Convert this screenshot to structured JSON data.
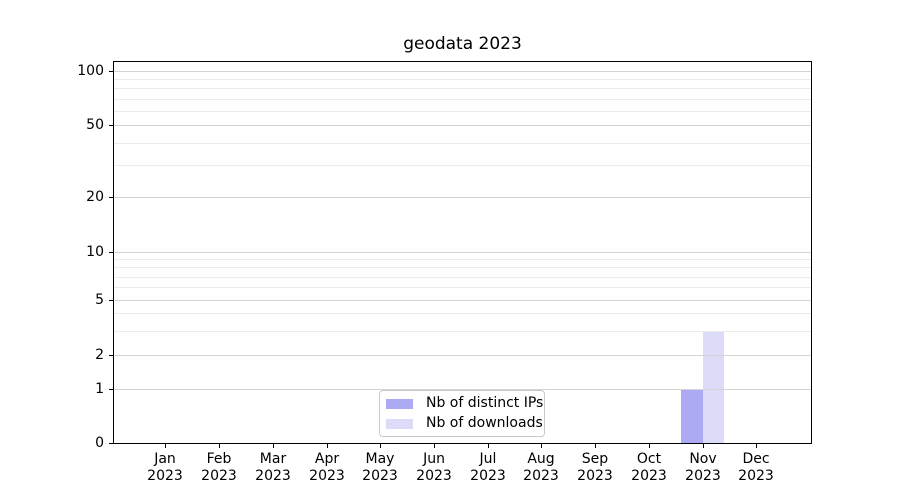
{
  "chart_data": {
    "type": "bar",
    "title": "geodata 2023",
    "categories": [
      "Jan",
      "Feb",
      "Mar",
      "Apr",
      "May",
      "Jun",
      "Jul",
      "Aug",
      "Sep",
      "Oct",
      "Nov",
      "Dec"
    ],
    "year_label": "2023",
    "series": [
      {
        "name": "Nb of distinct IPs",
        "color": "#abaaf2",
        "values": [
          0,
          0,
          0,
          0,
          0,
          0,
          0,
          0,
          0,
          0,
          1,
          0
        ]
      },
      {
        "name": "Nb of downloads",
        "color": "#dddcf8",
        "values": [
          0,
          0,
          0,
          0,
          0,
          0,
          0,
          0,
          0,
          0,
          3,
          0
        ]
      }
    ],
    "yscale": "symlog",
    "ylim": [
      0,
      100
    ],
    "y_major_ticks": [
      0,
      1,
      2,
      5,
      10,
      20,
      50,
      100
    ],
    "y_minor_ticks": [
      3,
      4,
      6,
      7,
      8,
      9,
      30,
      40,
      60,
      70,
      80,
      90
    ],
    "xlabel": "",
    "ylabel": "",
    "grid": "horizontal major and minor gridlines",
    "legend_position": "lower center inside plot"
  }
}
